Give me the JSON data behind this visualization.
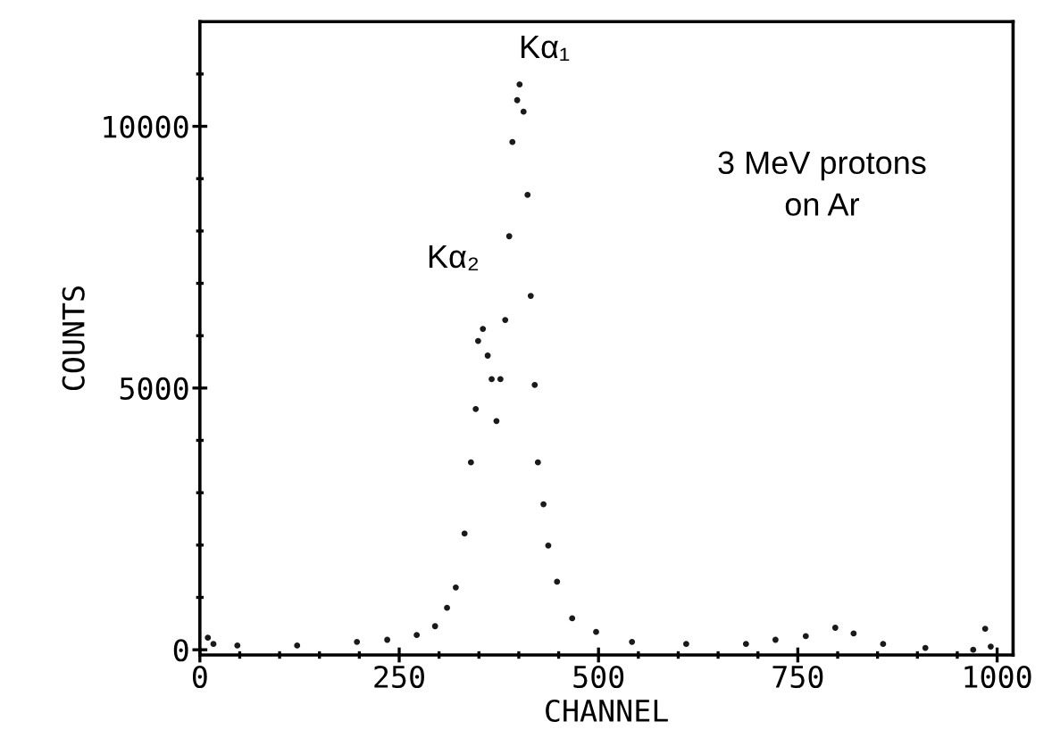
{
  "chart_data": {
    "type": "scatter",
    "xlabel": "CHANNEL",
    "ylabel": "COUNTS",
    "x": [
      10,
      17,
      47,
      122,
      197,
      235,
      272,
      295,
      310,
      321,
      332,
      340,
      346,
      349,
      355,
      361,
      366,
      372,
      377,
      383,
      388,
      392,
      398,
      401,
      406,
      411,
      415,
      420,
      424,
      431,
      437,
      448,
      467,
      497,
      542,
      610,
      685,
      722,
      760,
      797,
      820,
      857,
      910,
      970,
      985,
      992
    ],
    "series": [
      {
        "color": "#1a1a1a",
        "values": [
          230,
          110,
          80,
          80,
          150,
          190,
          280,
          450,
          800,
          1190,
          2220,
          3580,
          4600,
          5900,
          6130,
          5620,
          5170,
          4370,
          5170,
          6300,
          7900,
          9700,
          10500,
          10800,
          10280,
          8690,
          6760,
          5060,
          3580,
          2780,
          1990,
          1300,
          600,
          340,
          150,
          110,
          110,
          190,
          260,
          420,
          310,
          110,
          35,
          0,
          400,
          60
        ]
      }
    ],
    "marker": "circle",
    "xlim": [
      0,
      1020
    ],
    "ylim": [
      -100,
      12000
    ],
    "xticks": [
      0,
      {
        "value": 50,
        "label": null
      },
      {
        "value": 100,
        "label": null
      },
      {
        "value": 150,
        "label": null
      },
      {
        "value": 200,
        "label": null
      },
      250,
      {
        "value": 300,
        "label": null
      },
      {
        "value": 350,
        "label": null
      },
      {
        "value": 400,
        "label": null
      },
      {
        "value": 450,
        "label": null
      },
      500,
      {
        "value": 550,
        "label": null
      },
      {
        "value": 600,
        "label": null
      },
      {
        "value": 650,
        "label": null
      },
      {
        "value": 700,
        "label": null
      },
      750,
      {
        "value": 800,
        "label": null
      },
      {
        "value": 850,
        "label": null
      },
      {
        "value": 900,
        "label": null
      },
      {
        "value": 950,
        "label": null
      },
      1000
    ],
    "yticks": [
      0,
      {
        "value": 1000,
        "label": null
      },
      {
        "value": 2000,
        "label": null
      },
      {
        "value": 3000,
        "label": null
      },
      {
        "value": 4000,
        "label": null
      },
      5000,
      {
        "value": 6000,
        "label": null
      },
      {
        "value": 7000,
        "label": null
      },
      {
        "value": 8000,
        "label": null
      },
      {
        "value": 9000,
        "label": null
      },
      10000,
      {
        "value": 11000,
        "label": null
      }
    ],
    "annotations": [
      {
        "text": "Kα₁",
        "x": 401,
        "y": 10800
      },
      {
        "text": "Kα₂",
        "x": 355,
        "y": 6130
      },
      "3 MeV protons\non Ar"
    ],
    "grid": false,
    "legend": false
  }
}
